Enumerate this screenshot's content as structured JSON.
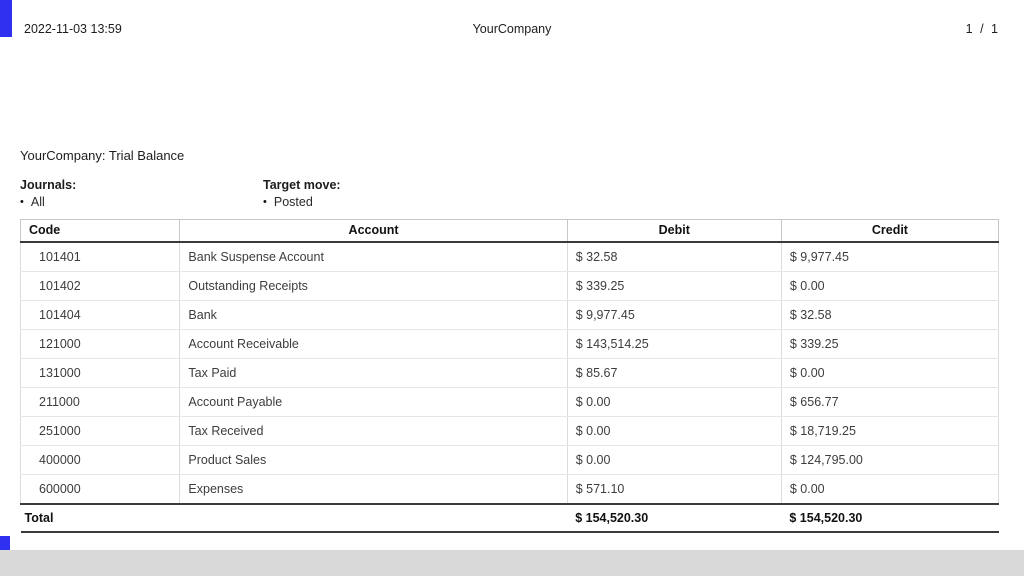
{
  "colors": {
    "accent_blue": "#3030f0",
    "header_text": "#111111",
    "body_text": "#404040",
    "bottom_strip": "#d9d9d9"
  },
  "doc_header": {
    "datetime": "2022-11-03 13:59",
    "company": "YourCompany",
    "page_indicator": "1 / 1"
  },
  "report": {
    "title": "YourCompany: Trial Balance",
    "filters": [
      {
        "label": "Journals:",
        "bullet": "•",
        "value": "All"
      },
      {
        "label": "Target move:",
        "bullet": "•",
        "value": "Posted"
      }
    ],
    "table": {
      "headers": [
        "Code",
        "Account",
        "Debit",
        "Credit"
      ],
      "rows": [
        [
          "101401",
          "Bank Suspense Account",
          "$ 32.58",
          "$ 9,977.45"
        ],
        [
          "101402",
          "Outstanding Receipts",
          "$ 339.25",
          "$ 0.00"
        ],
        [
          "101404",
          "Bank",
          "$ 9,977.45",
          "$ 32.58"
        ],
        [
          "121000",
          "Account Receivable",
          "$ 143,514.25",
          "$ 339.25"
        ],
        [
          "131000",
          "Tax Paid",
          "$ 85.67",
          "$ 0.00"
        ],
        [
          "211000",
          "Account Payable",
          "$ 0.00",
          "$ 656.77"
        ],
        [
          "251000",
          "Tax Received",
          "$ 0.00",
          "$ 18,719.25"
        ],
        [
          "400000",
          "Product Sales",
          "$ 0.00",
          "$ 124,795.00"
        ],
        [
          "600000",
          "Expenses",
          "$ 571.10",
          "$ 0.00"
        ]
      ],
      "total": {
        "label": "Total",
        "debit": "$ 154,520.30",
        "credit": "$ 154,520.30"
      }
    }
  }
}
